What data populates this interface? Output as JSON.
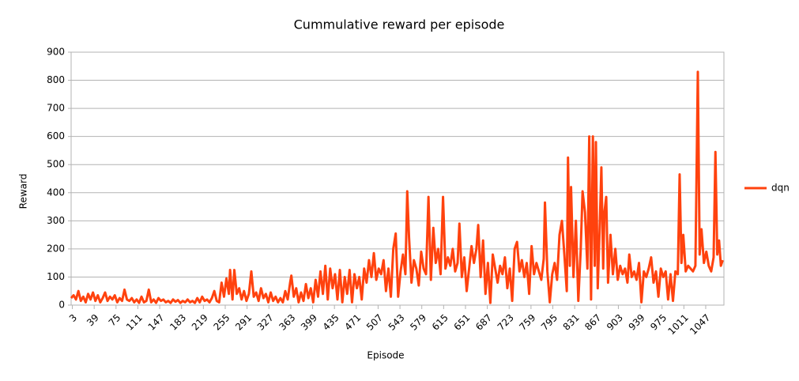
{
  "chart_data": {
    "type": "line",
    "title": "Cummulative reward per episode",
    "x_label": "Episode",
    "y_label": "Reward",
    "xlim": [
      1,
      1077
    ],
    "ylim": [
      0,
      900
    ],
    "yticks": [
      0,
      100,
      200,
      300,
      400,
      500,
      600,
      700,
      800,
      900
    ],
    "xticks": [
      3,
      39,
      75,
      111,
      147,
      183,
      219,
      255,
      291,
      327,
      363,
      399,
      435,
      471,
      507,
      543,
      579,
      615,
      651,
      687,
      723,
      759,
      795,
      831,
      867,
      903,
      939,
      975,
      1011,
      1047
    ],
    "grid": true,
    "legend": "right",
    "x": [
      1,
      5,
      9,
      13,
      17,
      21,
      25,
      29,
      33,
      37,
      41,
      45,
      49,
      53,
      57,
      61,
      65,
      69,
      73,
      77,
      81,
      85,
      89,
      93,
      97,
      101,
      105,
      109,
      113,
      117,
      121,
      125,
      129,
      133,
      137,
      141,
      145,
      149,
      153,
      157,
      161,
      165,
      169,
      173,
      177,
      181,
      185,
      189,
      193,
      197,
      201,
      205,
      209,
      213,
      217,
      221,
      225,
      229,
      233,
      237,
      241,
      245,
      249,
      253,
      257,
      261,
      263,
      267,
      270,
      274,
      278,
      282,
      286,
      290,
      294,
      298,
      302,
      306,
      310,
      314,
      318,
      322,
      326,
      330,
      334,
      338,
      342,
      346,
      350,
      354,
      358,
      362,
      364,
      368,
      372,
      376,
      380,
      384,
      388,
      392,
      396,
      400,
      404,
      408,
      412,
      416,
      420,
      424,
      428,
      432,
      436,
      440,
      444,
      448,
      452,
      456,
      460,
      464,
      468,
      472,
      476,
      480,
      484,
      488,
      492,
      496,
      500,
      504,
      508,
      512,
      516,
      520,
      524,
      528,
      532,
      536,
      540,
      544,
      548,
      552,
      555,
      558,
      562,
      566,
      570,
      574,
      578,
      582,
      586,
      590,
      594,
      598,
      602,
      606,
      610,
      614,
      618,
      622,
      626,
      630,
      634,
      638,
      641,
      645,
      649,
      653,
      657,
      661,
      665,
      669,
      672,
      676,
      680,
      684,
      688,
      692,
      696,
      700,
      704,
      708,
      712,
      716,
      720,
      724,
      728,
      732,
      736,
      740,
      744,
      748,
      752,
      756,
      760,
      764,
      768,
      772,
      776,
      780,
      782,
      786,
      790,
      794,
      798,
      802,
      806,
      810,
      814,
      818,
      820,
      823,
      825,
      829,
      833,
      837,
      841,
      844,
      848,
      852,
      855,
      858,
      861,
      864,
      866,
      869,
      872,
      875,
      878,
      880,
      883,
      886,
      890,
      894,
      898,
      902,
      906,
      910,
      914,
      918,
      921,
      925,
      929,
      933,
      937,
      941,
      945,
      949,
      953,
      957,
      961,
      965,
      969,
      973,
      977,
      981,
      985,
      989,
      993,
      997,
      1001,
      1004,
      1007,
      1010,
      1014,
      1018,
      1022,
      1026,
      1030,
      1034,
      1037,
      1040,
      1044,
      1048,
      1052,
      1056,
      1060,
      1063,
      1066,
      1069,
      1072,
      1075
    ],
    "series": [
      {
        "name": "dqn",
        "color": "#ff420e",
        "values": [
          25,
          35,
          20,
          50,
          15,
          30,
          10,
          40,
          20,
          45,
          15,
          35,
          10,
          25,
          45,
          15,
          30,
          20,
          35,
          10,
          25,
          15,
          55,
          20,
          15,
          25,
          10,
          20,
          8,
          30,
          10,
          15,
          55,
          10,
          20,
          8,
          25,
          15,
          20,
          10,
          15,
          8,
          20,
          12,
          18,
          8,
          15,
          10,
          20,
          10,
          15,
          8,
          25,
          10,
          30,
          15,
          20,
          10,
          25,
          50,
          15,
          10,
          80,
          30,
          95,
          40,
          125,
          20,
          125,
          40,
          60,
          20,
          50,
          15,
          40,
          120,
          30,
          45,
          15,
          60,
          25,
          40,
          10,
          45,
          15,
          30,
          10,
          25,
          10,
          50,
          20,
          80,
          105,
          30,
          60,
          10,
          45,
          15,
          75,
          25,
          60,
          10,
          90,
          30,
          120,
          40,
          140,
          20,
          130,
          60,
          110,
          20,
          125,
          10,
          100,
          40,
          125,
          10,
          110,
          60,
          100,
          20,
          130,
          80,
          160,
          100,
          185,
          90,
          130,
          110,
          160,
          50,
          130,
          30,
          200,
          255,
          30,
          120,
          180,
          110,
          405,
          240,
          80,
          160,
          130,
          70,
          190,
          130,
          110,
          385,
          90,
          275,
          150,
          200,
          110,
          385,
          130,
          170,
          140,
          200,
          120,
          150,
          290,
          100,
          170,
          50,
          130,
          210,
          150,
          200,
          285,
          100,
          230,
          40,
          150,
          8,
          180,
          130,
          80,
          140,
          110,
          170,
          60,
          130,
          15,
          200,
          225,
          120,
          160,
          100,
          150,
          40,
          210,
          110,
          150,
          120,
          90,
          165,
          365,
          120,
          10,
          110,
          150,
          90,
          250,
          300,
          180,
          50,
          525,
          140,
          420,
          100,
          300,
          15,
          200,
          405,
          330,
          130,
          600,
          20,
          600,
          140,
          580,
          60,
          260,
          490,
          130,
          330,
          385,
          80,
          250,
          110,
          200,
          90,
          140,
          110,
          130,
          80,
          180,
          100,
          120,
          90,
          150,
          10,
          120,
          100,
          130,
          170,
          80,
          120,
          30,
          130,
          100,
          120,
          20,
          110,
          15,
          120,
          110,
          465,
          150,
          250,
          120,
          140,
          130,
          120,
          140,
          830,
          180,
          270,
          150,
          190,
          140,
          120,
          170,
          545,
          180,
          230,
          140,
          160
        ]
      }
    ]
  }
}
